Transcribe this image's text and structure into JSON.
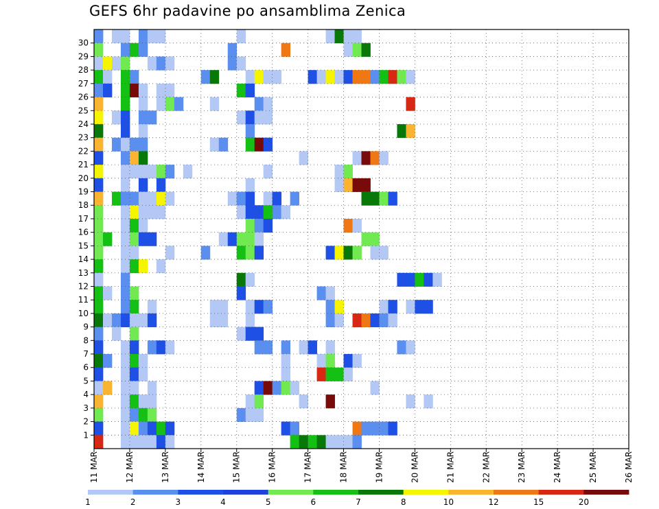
{
  "title": "GEFS 6hr padavine po ansamblima Zenica",
  "chart_data": {
    "type": "heatmap",
    "title": "GEFS 6hr padavine po ansamblima Zenica",
    "x_tick_labels": [
      "11 MAR",
      "12 MAR",
      "13 MAR",
      "14 MAR",
      "15 MAR",
      "16 MAR",
      "17 MAR",
      "18 MAR",
      "19 MAR",
      "20 MAR",
      "21 MAR",
      "22 MAR",
      "23 MAR",
      "24 MAR",
      "25 MAR",
      "26 MAR"
    ],
    "x_time_steps": 60,
    "y_tick_labels": [
      1,
      2,
      3,
      4,
      5,
      6,
      7,
      8,
      9,
      10,
      11,
      12,
      13,
      14,
      15,
      16,
      17,
      18,
      19,
      20,
      21,
      22,
      23,
      24,
      25,
      26,
      27,
      28,
      29,
      30
    ],
    "y_members": 31,
    "colorbar": {
      "labels": [
        "1",
        "2",
        "3",
        "4",
        "5",
        "6",
        "7",
        "8",
        "10",
        "12",
        "15",
        "20"
      ],
      "colors": [
        "#b4c8f5",
        "#5a8ff0",
        "#1e50e6",
        "#2041dc",
        "#70ea50",
        "#14c014",
        "#087808",
        "#f5f500",
        "#fab432",
        "#f07814",
        "#d72814",
        "#780a0a"
      ]
    },
    "cells_note": "cells listed as [time_step_0_to_59, member_0_to_30, level_0_to_11]",
    "cells": [
      [
        0,
        30,
        1
      ],
      [
        2,
        30,
        0
      ],
      [
        3,
        30,
        0
      ],
      [
        5,
        30,
        1
      ],
      [
        6,
        30,
        0
      ],
      [
        7,
        30,
        0
      ],
      [
        16,
        30,
        0
      ],
      [
        26,
        30,
        0
      ],
      [
        27,
        30,
        6
      ],
      [
        28,
        30,
        0
      ],
      [
        29,
        30,
        0
      ],
      [
        0,
        29,
        4
      ],
      [
        3,
        29,
        1
      ],
      [
        4,
        29,
        5
      ],
      [
        5,
        29,
        1
      ],
      [
        15,
        29,
        1
      ],
      [
        21,
        29,
        9
      ],
      [
        28,
        29,
        0
      ],
      [
        29,
        29,
        4
      ],
      [
        30,
        29,
        6
      ],
      [
        0,
        28,
        0
      ],
      [
        1,
        28,
        7
      ],
      [
        2,
        28,
        0
      ],
      [
        3,
        28,
        4
      ],
      [
        6,
        28,
        0
      ],
      [
        7,
        28,
        1
      ],
      [
        8,
        28,
        0
      ],
      [
        15,
        28,
        1
      ],
      [
        16,
        28,
        0
      ],
      [
        0,
        27,
        5
      ],
      [
        1,
        27,
        0
      ],
      [
        3,
        27,
        5
      ],
      [
        4,
        27,
        1
      ],
      [
        12,
        27,
        1
      ],
      [
        13,
        27,
        6
      ],
      [
        17,
        27,
        0
      ],
      [
        18,
        27,
        7
      ],
      [
        19,
        27,
        0
      ],
      [
        20,
        27,
        0
      ],
      [
        24,
        27,
        2
      ],
      [
        25,
        27,
        0
      ],
      [
        26,
        27,
        7
      ],
      [
        27,
        27,
        0
      ],
      [
        28,
        27,
        2
      ],
      [
        29,
        27,
        9
      ],
      [
        30,
        27,
        9
      ],
      [
        31,
        27,
        1
      ],
      [
        32,
        27,
        5
      ],
      [
        33,
        27,
        10
      ],
      [
        34,
        27,
        4
      ],
      [
        35,
        27,
        0
      ],
      [
        0,
        26,
        1
      ],
      [
        1,
        26,
        2
      ],
      [
        3,
        26,
        5
      ],
      [
        4,
        26,
        11
      ],
      [
        5,
        26,
        0
      ],
      [
        7,
        26,
        0
      ],
      [
        8,
        26,
        0
      ],
      [
        16,
        26,
        5
      ],
      [
        17,
        26,
        2
      ],
      [
        0,
        25,
        8
      ],
      [
        3,
        25,
        5
      ],
      [
        5,
        25,
        0
      ],
      [
        7,
        25,
        0
      ],
      [
        8,
        25,
        4
      ],
      [
        9,
        25,
        1
      ],
      [
        13,
        25,
        0
      ],
      [
        18,
        25,
        1
      ],
      [
        19,
        25,
        0
      ],
      [
        35,
        25,
        10
      ],
      [
        0,
        24,
        7
      ],
      [
        2,
        24,
        0
      ],
      [
        3,
        24,
        2
      ],
      [
        5,
        24,
        1
      ],
      [
        6,
        24,
        1
      ],
      [
        16,
        24,
        0
      ],
      [
        17,
        24,
        2
      ],
      [
        18,
        24,
        0
      ],
      [
        19,
        24,
        0
      ],
      [
        0,
        23,
        6
      ],
      [
        3,
        23,
        2
      ],
      [
        5,
        23,
        0
      ],
      [
        17,
        23,
        1
      ],
      [
        34,
        23,
        6
      ],
      [
        35,
        23,
        8
      ],
      [
        0,
        22,
        8
      ],
      [
        2,
        22,
        1
      ],
      [
        3,
        22,
        0
      ],
      [
        4,
        22,
        1
      ],
      [
        5,
        22,
        1
      ],
      [
        13,
        22,
        0
      ],
      [
        14,
        22,
        1
      ],
      [
        17,
        22,
        5
      ],
      [
        18,
        22,
        11
      ],
      [
        19,
        22,
        2
      ],
      [
        0,
        21,
        2
      ],
      [
        3,
        21,
        1
      ],
      [
        4,
        21,
        8
      ],
      [
        5,
        21,
        6
      ],
      [
        23,
        21,
        0
      ],
      [
        29,
        21,
        0
      ],
      [
        30,
        21,
        11
      ],
      [
        31,
        21,
        9
      ],
      [
        32,
        21,
        0
      ],
      [
        0,
        20,
        7
      ],
      [
        3,
        20,
        0
      ],
      [
        4,
        20,
        0
      ],
      [
        5,
        20,
        0
      ],
      [
        6,
        20,
        0
      ],
      [
        7,
        20,
        4
      ],
      [
        8,
        20,
        1
      ],
      [
        10,
        20,
        0
      ],
      [
        19,
        20,
        0
      ],
      [
        27,
        20,
        0
      ],
      [
        28,
        20,
        4
      ],
      [
        0,
        19,
        2
      ],
      [
        3,
        19,
        0
      ],
      [
        5,
        19,
        2
      ],
      [
        7,
        19,
        2
      ],
      [
        17,
        19,
        0
      ],
      [
        27,
        19,
        0
      ],
      [
        28,
        19,
        8
      ],
      [
        29,
        19,
        11
      ],
      [
        30,
        19,
        11
      ],
      [
        0,
        18,
        8
      ],
      [
        2,
        18,
        5
      ],
      [
        3,
        18,
        1
      ],
      [
        4,
        18,
        1
      ],
      [
        5,
        18,
        0
      ],
      [
        6,
        18,
        0
      ],
      [
        7,
        18,
        7
      ],
      [
        8,
        18,
        0
      ],
      [
        15,
        18,
        0
      ],
      [
        16,
        18,
        1
      ],
      [
        17,
        18,
        2
      ],
      [
        19,
        18,
        0
      ],
      [
        20,
        18,
        2
      ],
      [
        22,
        18,
        1
      ],
      [
        30,
        18,
        6
      ],
      [
        31,
        18,
        6
      ],
      [
        32,
        18,
        4
      ],
      [
        33,
        18,
        2
      ],
      [
        0,
        17,
        4
      ],
      [
        3,
        17,
        0
      ],
      [
        4,
        17,
        7
      ],
      [
        5,
        17,
        0
      ],
      [
        6,
        17,
        0
      ],
      [
        7,
        17,
        0
      ],
      [
        16,
        17,
        0
      ],
      [
        17,
        17,
        2
      ],
      [
        18,
        17,
        2
      ],
      [
        19,
        17,
        5
      ],
      [
        20,
        17,
        1
      ],
      [
        21,
        17,
        0
      ],
      [
        0,
        16,
        4
      ],
      [
        3,
        16,
        0
      ],
      [
        4,
        16,
        5
      ],
      [
        5,
        16,
        0
      ],
      [
        17,
        16,
        4
      ],
      [
        18,
        16,
        1
      ],
      [
        19,
        16,
        2
      ],
      [
        28,
        16,
        9
      ],
      [
        29,
        16,
        0
      ],
      [
        0,
        15,
        4
      ],
      [
        1,
        15,
        5
      ],
      [
        3,
        15,
        0
      ],
      [
        4,
        15,
        4
      ],
      [
        5,
        15,
        2
      ],
      [
        6,
        15,
        2
      ],
      [
        14,
        15,
        0
      ],
      [
        15,
        15,
        2
      ],
      [
        16,
        15,
        4
      ],
      [
        17,
        15,
        4
      ],
      [
        18,
        15,
        0
      ],
      [
        30,
        15,
        4
      ],
      [
        31,
        15,
        4
      ],
      [
        0,
        14,
        4
      ],
      [
        3,
        14,
        0
      ],
      [
        4,
        14,
        0
      ],
      [
        8,
        14,
        0
      ],
      [
        12,
        14,
        1
      ],
      [
        16,
        14,
        5
      ],
      [
        17,
        14,
        4
      ],
      [
        18,
        14,
        2
      ],
      [
        26,
        14,
        2
      ],
      [
        27,
        14,
        7
      ],
      [
        28,
        14,
        6
      ],
      [
        29,
        14,
        4
      ],
      [
        31,
        14,
        0
      ],
      [
        32,
        14,
        0
      ],
      [
        0,
        13,
        5
      ],
      [
        3,
        13,
        0
      ],
      [
        4,
        13,
        5
      ],
      [
        5,
        13,
        7
      ],
      [
        7,
        13,
        0
      ],
      [
        0,
        12,
        0
      ],
      [
        3,
        12,
        1
      ],
      [
        16,
        12,
        6
      ],
      [
        17,
        12,
        0
      ],
      [
        34,
        12,
        2
      ],
      [
        35,
        12,
        2
      ],
      [
        36,
        12,
        5
      ],
      [
        37,
        12,
        2
      ],
      [
        38,
        12,
        0
      ],
      [
        0,
        11,
        5
      ],
      [
        1,
        11,
        0
      ],
      [
        3,
        11,
        1
      ],
      [
        4,
        11,
        4
      ],
      [
        16,
        11,
        2
      ],
      [
        25,
        11,
        1
      ],
      [
        26,
        11,
        0
      ],
      [
        0,
        10,
        5
      ],
      [
        3,
        10,
        1
      ],
      [
        4,
        10,
        5
      ],
      [
        6,
        10,
        0
      ],
      [
        13,
        10,
        0
      ],
      [
        14,
        10,
        0
      ],
      [
        17,
        10,
        0
      ],
      [
        18,
        10,
        2
      ],
      [
        19,
        10,
        1
      ],
      [
        26,
        10,
        1
      ],
      [
        27,
        10,
        7
      ],
      [
        32,
        10,
        0
      ],
      [
        33,
        10,
        2
      ],
      [
        35,
        10,
        0
      ],
      [
        36,
        10,
        2
      ],
      [
        37,
        10,
        2
      ],
      [
        0,
        9,
        6
      ],
      [
        1,
        9,
        0
      ],
      [
        2,
        9,
        1
      ],
      [
        3,
        9,
        2
      ],
      [
        4,
        9,
        0
      ],
      [
        5,
        9,
        0
      ],
      [
        6,
        9,
        2
      ],
      [
        13,
        9,
        0
      ],
      [
        14,
        9,
        0
      ],
      [
        17,
        9,
        0
      ],
      [
        26,
        9,
        1
      ],
      [
        27,
        9,
        0
      ],
      [
        29,
        9,
        10
      ],
      [
        30,
        9,
        9
      ],
      [
        31,
        9,
        2
      ],
      [
        32,
        9,
        1
      ],
      [
        33,
        9,
        0
      ],
      [
        0,
        8,
        1
      ],
      [
        2,
        8,
        0
      ],
      [
        4,
        8,
        4
      ],
      [
        16,
        8,
        0
      ],
      [
        17,
        8,
        2
      ],
      [
        18,
        8,
        2
      ],
      [
        0,
        7,
        2
      ],
      [
        3,
        7,
        0
      ],
      [
        4,
        7,
        2
      ],
      [
        6,
        7,
        1
      ],
      [
        7,
        7,
        2
      ],
      [
        8,
        7,
        0
      ],
      [
        18,
        7,
        1
      ],
      [
        19,
        7,
        1
      ],
      [
        21,
        7,
        1
      ],
      [
        23,
        7,
        0
      ],
      [
        24,
        7,
        2
      ],
      [
        26,
        7,
        0
      ],
      [
        34,
        7,
        1
      ],
      [
        35,
        7,
        0
      ],
      [
        0,
        6,
        6
      ],
      [
        1,
        6,
        1
      ],
      [
        3,
        6,
        0
      ],
      [
        4,
        6,
        5
      ],
      [
        5,
        6,
        0
      ],
      [
        21,
        6,
        0
      ],
      [
        25,
        6,
        0
      ],
      [
        26,
        6,
        4
      ],
      [
        28,
        6,
        2
      ],
      [
        29,
        6,
        0
      ],
      [
        0,
        5,
        2
      ],
      [
        3,
        5,
        0
      ],
      [
        4,
        5,
        2
      ],
      [
        5,
        5,
        0
      ],
      [
        21,
        5,
        0
      ],
      [
        25,
        5,
        10
      ],
      [
        26,
        5,
        5
      ],
      [
        27,
        5,
        5
      ],
      [
        28,
        5,
        0
      ],
      [
        0,
        4,
        0
      ],
      [
        1,
        4,
        8
      ],
      [
        3,
        4,
        0
      ],
      [
        4,
        4,
        0
      ],
      [
        6,
        4,
        0
      ],
      [
        18,
        4,
        2
      ],
      [
        19,
        4,
        11
      ],
      [
        20,
        4,
        1
      ],
      [
        21,
        4,
        4
      ],
      [
        22,
        4,
        0
      ],
      [
        31,
        4,
        0
      ],
      [
        0,
        3,
        8
      ],
      [
        3,
        3,
        0
      ],
      [
        4,
        3,
        5
      ],
      [
        5,
        3,
        0
      ],
      [
        6,
        3,
        0
      ],
      [
        17,
        3,
        0
      ],
      [
        18,
        3,
        4
      ],
      [
        23,
        3,
        0
      ],
      [
        26,
        3,
        11
      ],
      [
        35,
        3,
        0
      ],
      [
        37,
        3,
        0
      ],
      [
        0,
        2,
        4
      ],
      [
        3,
        2,
        0
      ],
      [
        4,
        2,
        1
      ],
      [
        5,
        2,
        5
      ],
      [
        6,
        2,
        4
      ],
      [
        16,
        2,
        1
      ],
      [
        17,
        2,
        0
      ],
      [
        18,
        2,
        0
      ],
      [
        0,
        1,
        2
      ],
      [
        3,
        1,
        0
      ],
      [
        4,
        1,
        7
      ],
      [
        5,
        1,
        1
      ],
      [
        6,
        1,
        2
      ],
      [
        7,
        1,
        5
      ],
      [
        8,
        1,
        2
      ],
      [
        21,
        1,
        2
      ],
      [
        22,
        1,
        1
      ],
      [
        29,
        1,
        9
      ],
      [
        30,
        1,
        1
      ],
      [
        31,
        1,
        1
      ],
      [
        32,
        1,
        1
      ],
      [
        33,
        1,
        2
      ],
      [
        0,
        0,
        10
      ],
      [
        3,
        0,
        0
      ],
      [
        4,
        0,
        0
      ],
      [
        5,
        0,
        0
      ],
      [
        6,
        0,
        0
      ],
      [
        7,
        0,
        2
      ],
      [
        8,
        0,
        0
      ],
      [
        22,
        0,
        5
      ],
      [
        23,
        0,
        6
      ],
      [
        24,
        0,
        5
      ],
      [
        25,
        0,
        6
      ],
      [
        26,
        0,
        0
      ],
      [
        27,
        0,
        0
      ],
      [
        28,
        0,
        0
      ],
      [
        29,
        0,
        1
      ]
    ]
  }
}
